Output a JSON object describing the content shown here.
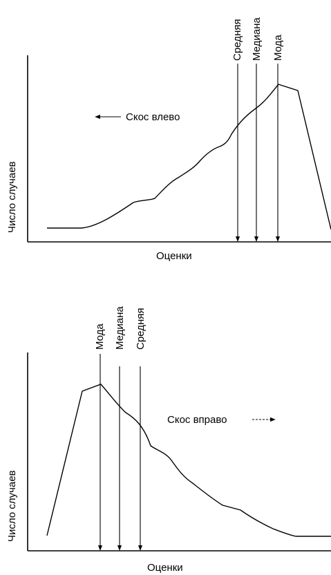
{
  "panels": [
    {
      "id": "left-skew",
      "ylabel": "Число случаев",
      "xlabel": "Оценки",
      "skew_label": "Скос влево",
      "skew_arrow_direction": "left",
      "markers": [
        "Средняя",
        "Медиана",
        "Мода"
      ]
    },
    {
      "id": "right-skew",
      "ylabel": "Число случаев",
      "xlabel": "Оценки",
      "skew_label": "Скос вправо",
      "skew_arrow_direction": "right",
      "markers": [
        "Мода",
        "Медиана",
        "Средняя"
      ]
    }
  ]
}
